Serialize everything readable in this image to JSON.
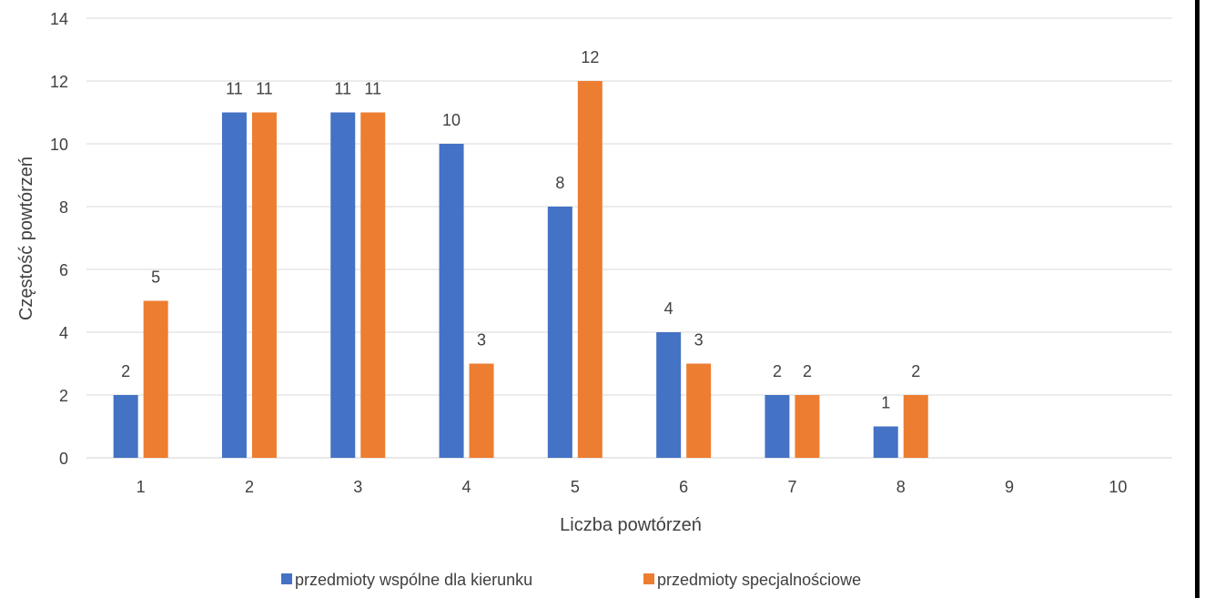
{
  "chart_data": {
    "type": "bar",
    "title": "",
    "xlabel": "Liczba powtórzeń",
    "ylabel": "Częstość powtórzeń",
    "ylim": [
      0,
      14
    ],
    "yticks": [
      0,
      2,
      4,
      6,
      8,
      10,
      12,
      14
    ],
    "grid": true,
    "legend_position": "bottom",
    "categories": [
      "1",
      "2",
      "3",
      "4",
      "5",
      "6",
      "7",
      "8",
      "9",
      "10"
    ],
    "series": [
      {
        "name": "przedmioty wspólne dla kierunku",
        "color": "#4472C4",
        "values": [
          2,
          11,
          11,
          10,
          8,
          4,
          2,
          1,
          null,
          null
        ]
      },
      {
        "name": "przedmioty specjalnościowe",
        "color": "#ED7D31",
        "values": [
          5,
          11,
          11,
          3,
          12,
          3,
          2,
          2,
          null,
          null
        ]
      }
    ]
  }
}
